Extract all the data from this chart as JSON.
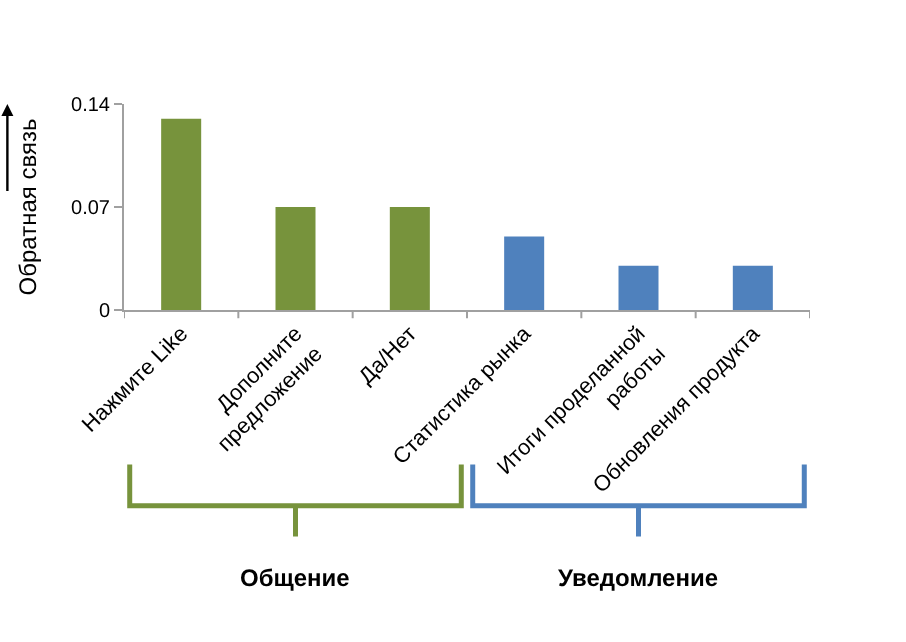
{
  "chart_data": {
    "type": "bar",
    "categories": [
      "Нажмите Like",
      "Дополните\nпредложение",
      "Да/Нет",
      "Статистика рынка",
      "Итоги проделанной\nработы",
      "Обновления продукта"
    ],
    "values": [
      0.13,
      0.07,
      0.07,
      0.05,
      0.03,
      0.03
    ],
    "colors": [
      "#77933c",
      "#77933c",
      "#77933c",
      "#4f81bd",
      "#4f81bd",
      "#4f81bd"
    ],
    "ylabel": "Обратная связь",
    "ylim": [
      0,
      0.14
    ],
    "yticks": [
      0,
      0.07,
      0.14
    ],
    "annotations": [
      "Общение",
      "Уведомление"
    ]
  }
}
